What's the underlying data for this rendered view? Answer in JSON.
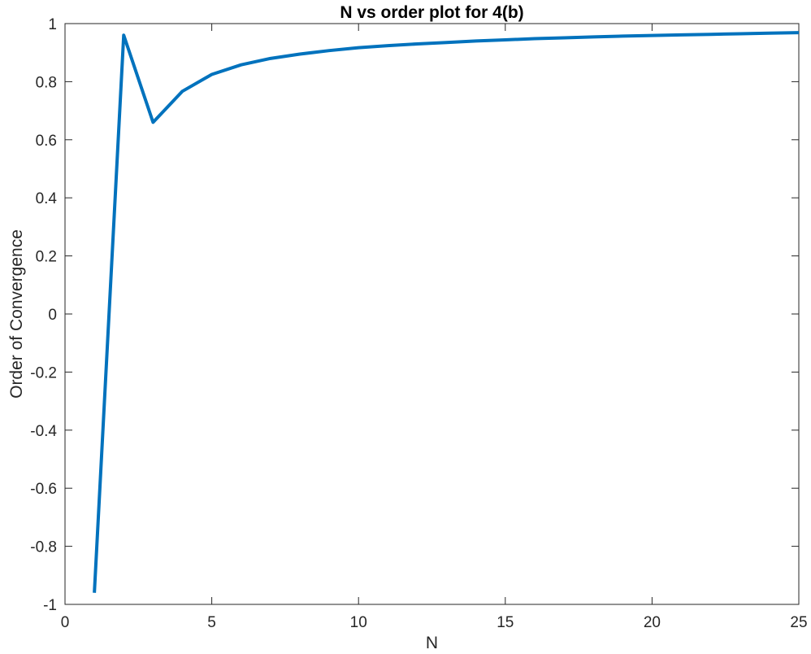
{
  "chart_data": {
    "type": "line",
    "title": "N vs order plot for 4(b)",
    "xlabel": "N",
    "ylabel": "Order of Convergence",
    "xlim": [
      0,
      25
    ],
    "ylim": [
      -1,
      1
    ],
    "xticks": [
      0,
      5,
      10,
      15,
      20,
      25
    ],
    "xtick_labels": [
      "0",
      "5",
      "10",
      "15",
      "20",
      "25"
    ],
    "yticks": [
      -1,
      -0.8,
      -0.6,
      -0.4,
      -0.2,
      0,
      0.2,
      0.4,
      0.6,
      0.8,
      1
    ],
    "ytick_labels": [
      "-1",
      "-0.8",
      "-0.6",
      "-0.4",
      "-0.2",
      "0",
      "0.2",
      "0.4",
      "0.6",
      "0.8",
      "1"
    ],
    "grid": false,
    "series": [
      {
        "color": "#0072BD",
        "x": [
          1,
          2,
          3,
          4,
          5,
          6,
          7,
          8,
          9,
          10,
          11,
          12,
          13,
          14,
          15,
          16,
          17,
          18,
          19,
          20,
          21,
          22,
          23,
          24,
          25
        ],
        "y": [
          -0.96,
          0.96,
          0.66,
          0.767,
          0.825,
          0.858,
          0.88,
          0.895,
          0.907,
          0.917,
          0.924,
          0.93,
          0.935,
          0.94,
          0.944,
          0.948,
          0.951,
          0.954,
          0.957,
          0.959,
          0.961,
          0.963,
          0.965,
          0.967,
          0.969
        ]
      }
    ]
  }
}
